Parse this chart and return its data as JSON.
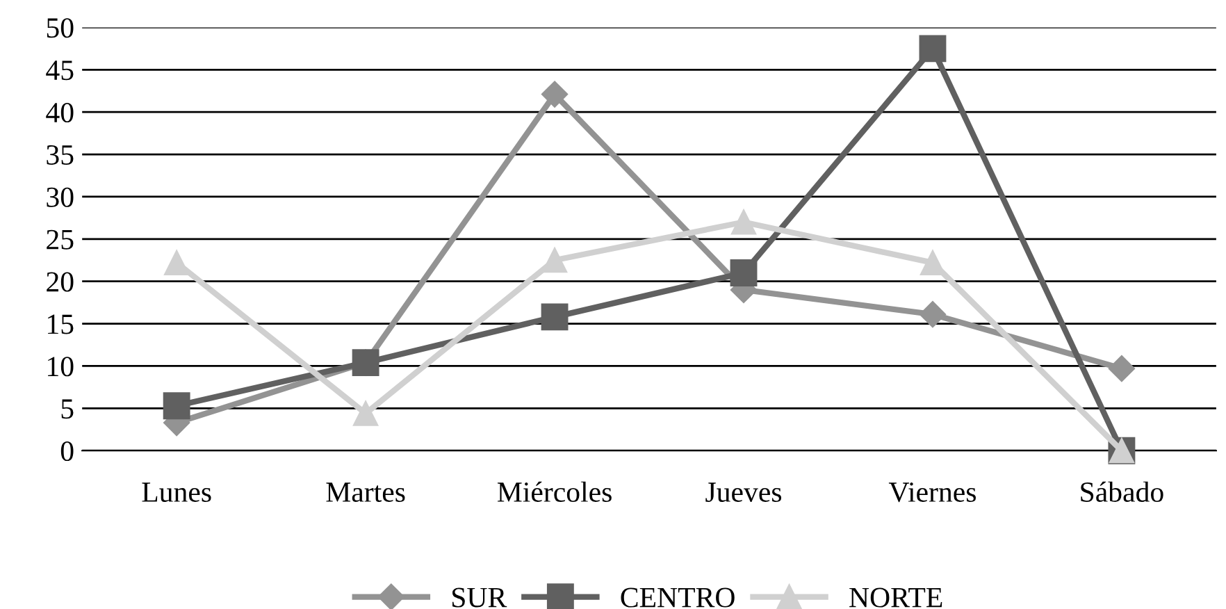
{
  "chart_data": {
    "type": "line",
    "categories": [
      "Lunes",
      "Martes",
      "Miércoles",
      "Jueves",
      "Viernes",
      "Sábado"
    ],
    "series": [
      {
        "name": "SUR",
        "color": "#939393",
        "marker": "diamond",
        "values": [
          3.3,
          10.4,
          42.1,
          19,
          16.1,
          9.7
        ]
      },
      {
        "name": "CENTRO",
        "color": "#606060",
        "marker": "square",
        "values": [
          5.3,
          10.4,
          15.8,
          21,
          47.5,
          0
        ]
      },
      {
        "name": "NORTE",
        "color": "#d0d0d0",
        "marker": "triangle",
        "values": [
          22.2,
          4.4,
          22.5,
          27,
          22.2,
          0
        ]
      }
    ],
    "ylim": [
      0,
      50
    ],
    "yticks": [
      0,
      5,
      10,
      15,
      20,
      25,
      30,
      35,
      40,
      45,
      50
    ],
    "grid": "y",
    "legend": "bottom"
  }
}
